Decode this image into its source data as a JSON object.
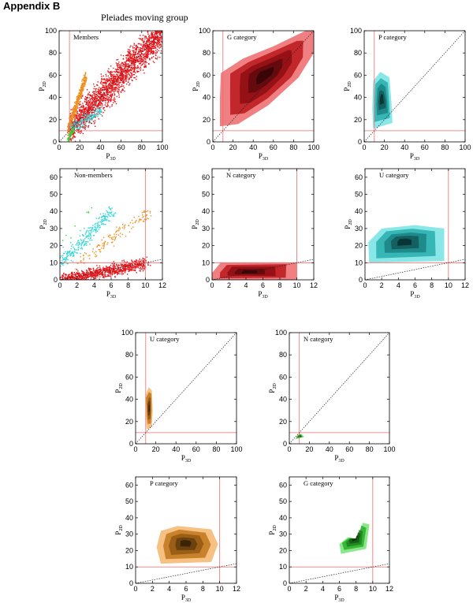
{
  "appendix_title": "Appendix B",
  "figure_title": "Pleiades moving group",
  "colors": {
    "red": "#e4161b",
    "cyan": "#2ad4d4",
    "orange": "#ee8e1c",
    "green": "#2bd42b",
    "ref": "#ee6b6b",
    "diag": "#222222"
  },
  "chart_data": [
    {
      "type": "scatter",
      "panel": "a",
      "label": "Members",
      "xlabel": "P3D",
      "ylabel": "P2D",
      "xlim": [
        0,
        100
      ],
      "ylim": [
        0,
        100
      ],
      "xticks": [
        "0",
        "20",
        "40",
        "60",
        "80",
        "100"
      ],
      "yticks": [
        "0",
        "20",
        "40",
        "60",
        "80",
        "100"
      ],
      "reflines": {
        "x": 10,
        "y": 10
      },
      "diagonal": true,
      "series": [
        {
          "color": "red",
          "cloud": {
            "x": [
              10,
              100
            ],
            "y": [
              12,
              100
            ],
            "spread": 22,
            "n": 2200
          }
        },
        {
          "color": "orange",
          "cloud": {
            "x": [
              8,
              26
            ],
            "y": [
              12,
              60
            ],
            "spread": 8,
            "n": 400
          }
        },
        {
          "color": "cyan",
          "cloud": {
            "x": [
              10,
              40
            ],
            "y": [
              12,
              28
            ],
            "spread": 8,
            "n": 150
          }
        },
        {
          "color": "green",
          "cloud": {
            "x": [
              8,
              14
            ],
            "y": [
              3,
              12
            ],
            "spread": 4,
            "n": 80
          }
        }
      ]
    },
    {
      "type": "heatmap",
      "panel": "b",
      "label": "G category",
      "xlabel": "P3D",
      "ylabel": "P2D",
      "xlim": [
        0,
        100
      ],
      "ylim": [
        0,
        100
      ],
      "xticks": [
        "0",
        "20",
        "40",
        "60",
        "80",
        "100"
      ],
      "yticks": [
        "0",
        "20",
        "40",
        "60",
        "80",
        "100"
      ],
      "reflines": {
        "x": 10,
        "y": 10
      },
      "diagonal": true,
      "color": "red",
      "region": [
        [
          7,
          14
        ],
        [
          25,
          16
        ],
        [
          55,
          33
        ],
        [
          85,
          58
        ],
        [
          100,
          80
        ],
        [
          100,
          100
        ],
        [
          92,
          100
        ],
        [
          60,
          86
        ],
        [
          30,
          75
        ],
        [
          8,
          62
        ],
        [
          7,
          40
        ]
      ]
    },
    {
      "type": "heatmap",
      "panel": "c",
      "label": "P category",
      "xlabel": "P3D",
      "ylabel": "P2D",
      "xlim": [
        0,
        100
      ],
      "ylim": [
        0,
        100
      ],
      "xticks": [
        "0",
        "20",
        "40",
        "60",
        "80",
        "100"
      ],
      "yticks": [
        "0",
        "20",
        "40",
        "60",
        "80",
        "100"
      ],
      "reflines": {
        "x": 10,
        "y": 10
      },
      "diagonal": true,
      "color": "cyan",
      "region": [
        [
          9,
          12
        ],
        [
          28,
          17
        ],
        [
          27,
          35
        ],
        [
          25,
          58
        ],
        [
          16,
          63
        ],
        [
          9,
          55
        ],
        [
          8,
          30
        ]
      ]
    },
    {
      "type": "scatter",
      "panel": "d",
      "label": "Non-members",
      "xlabel": "P3D",
      "ylabel": "P2D",
      "xlim": [
        0,
        12
      ],
      "ylim": [
        0,
        65
      ],
      "xticks": [
        "0",
        "2",
        "4",
        "6",
        "8",
        "10",
        "12"
      ],
      "yticks": [
        "0",
        "10",
        "20",
        "30",
        "40",
        "50",
        "60"
      ],
      "reflines": {
        "x": 10,
        "y": 10
      },
      "diagonal": true,
      "series": [
        {
          "color": "red",
          "cloud": {
            "x": [
              0,
              10
            ],
            "y": [
              0,
              10
            ],
            "spread": 5,
            "n": 900
          }
        },
        {
          "color": "cyan",
          "cloud": {
            "x": [
              0,
              6
            ],
            "y": [
              10,
              40
            ],
            "spread": 6,
            "n": 260
          }
        },
        {
          "color": "orange",
          "cloud": {
            "x": [
              2,
              11
            ],
            "y": [
              10,
              42
            ],
            "spread": 6,
            "n": 130
          }
        },
        {
          "color": "green",
          "cloud": {
            "x": [
              0,
              4
            ],
            "y": [
              20,
              45
            ],
            "spread": 4,
            "n": 8
          }
        }
      ]
    },
    {
      "type": "heatmap",
      "panel": "e",
      "label": "N category",
      "xlabel": "P3D",
      "ylabel": "P2D",
      "xlim": [
        0,
        12
      ],
      "ylim": [
        0,
        65
      ],
      "xticks": [
        "0",
        "2",
        "4",
        "6",
        "8",
        "10",
        "12"
      ],
      "yticks": [
        "0",
        "10",
        "20",
        "30",
        "40",
        "50",
        "60"
      ],
      "reflines": {
        "x": 10,
        "y": 10
      },
      "diagonal": true,
      "color": "red",
      "region": [
        [
          0,
          0
        ],
        [
          10,
          0
        ],
        [
          10,
          10
        ],
        [
          1,
          10
        ],
        [
          0,
          4
        ]
      ]
    },
    {
      "type": "heatmap",
      "panel": "f",
      "label": "U category",
      "xlabel": "P3D",
      "ylabel": "P2D",
      "xlim": [
        0,
        12
      ],
      "ylim": [
        0,
        65
      ],
      "xticks": [
        "0",
        "2",
        "4",
        "6",
        "8",
        "10",
        "12"
      ],
      "yticks": [
        "0",
        "10",
        "20",
        "30",
        "40",
        "50",
        "60"
      ],
      "reflines": {
        "x": 10,
        "y": 10
      },
      "diagonal": true,
      "color": "cyan",
      "region": [
        [
          0.5,
          10
        ],
        [
          9.5,
          11
        ],
        [
          9.5,
          30
        ],
        [
          6,
          32
        ],
        [
          2,
          30
        ],
        [
          0.4,
          22
        ]
      ]
    },
    {
      "type": "heatmap",
      "panel": "g",
      "label": "U category",
      "xlabel": "P3D",
      "ylabel": "P2D",
      "xlim": [
        0,
        100
      ],
      "ylim": [
        0,
        100
      ],
      "xticks": [
        "0",
        "20",
        "40",
        "60",
        "80",
        "100"
      ],
      "yticks": [
        "0",
        "20",
        "40",
        "60",
        "80",
        "100"
      ],
      "reflines": {
        "x": 10,
        "y": 10
      },
      "diagonal": true,
      "color": "orange",
      "region": [
        [
          11,
          13
        ],
        [
          16,
          15
        ],
        [
          17,
          30
        ],
        [
          16,
          48
        ],
        [
          13,
          51
        ],
        [
          10,
          44
        ],
        [
          10,
          24
        ]
      ]
    },
    {
      "type": "heatmap",
      "panel": "h",
      "label": "N category",
      "xlabel": "P3D",
      "ylabel": "P2D",
      "xlim": [
        0,
        100
      ],
      "ylim": [
        0,
        100
      ],
      "xticks": [
        "0",
        "20",
        "40",
        "60",
        "80",
        "100"
      ],
      "yticks": [
        "0",
        "20",
        "40",
        "60",
        "80",
        "100"
      ],
      "reflines": {
        "x": 10,
        "y": 10
      },
      "diagonal": true,
      "color": "green",
      "region": [
        [
          6,
          4
        ],
        [
          15,
          6
        ],
        [
          12,
          9
        ],
        [
          8,
          8
        ]
      ]
    },
    {
      "type": "heatmap",
      "panel": "i",
      "label": "P category",
      "xlabel": "P3D",
      "ylabel": "P2D",
      "xlim": [
        0,
        12
      ],
      "ylim": [
        0,
        65
      ],
      "xticks": [
        "0",
        "2",
        "4",
        "6",
        "8",
        "10",
        "12"
      ],
      "yticks": [
        "0",
        "10",
        "20",
        "30",
        "40",
        "50",
        "60"
      ],
      "reflines": {
        "x": 10,
        "y": 10
      },
      "diagonal": true,
      "color": "orange",
      "region": [
        [
          3,
          12
        ],
        [
          9,
          13
        ],
        [
          9.8,
          24
        ],
        [
          9,
          33
        ],
        [
          5,
          35
        ],
        [
          3,
          32
        ],
        [
          2.5,
          22
        ]
      ]
    },
    {
      "type": "heatmap",
      "panel": "j",
      "label": "G category",
      "xlabel": "P3D",
      "ylabel": "P2D",
      "xlim": [
        0,
        12
      ],
      "ylim": [
        0,
        65
      ],
      "xticks": [
        "0",
        "2",
        "4",
        "6",
        "8",
        "10",
        "12"
      ],
      "yticks": [
        "0",
        "10",
        "20",
        "30",
        "40",
        "50",
        "60"
      ],
      "reflines": {
        "x": 10,
        "y": 10
      },
      "diagonal": true,
      "color": "green",
      "region": [
        [
          6.2,
          18
        ],
        [
          9.2,
          21
        ],
        [
          9.6,
          36
        ],
        [
          8.8,
          37
        ],
        [
          8.3,
          27
        ],
        [
          7,
          28
        ],
        [
          6,
          24
        ]
      ]
    }
  ]
}
